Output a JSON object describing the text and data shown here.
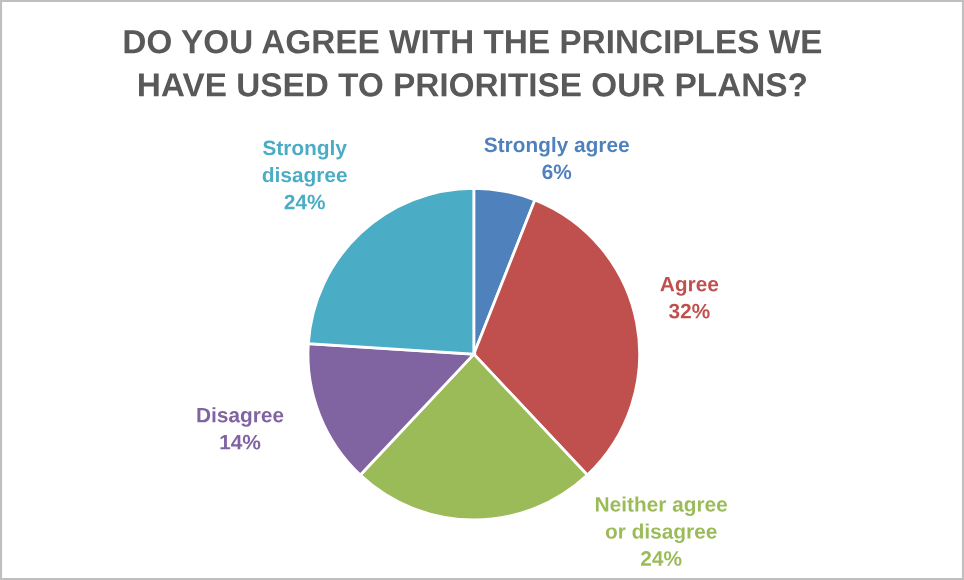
{
  "chart_data": {
    "type": "pie",
    "title": "DO YOU AGREE WITH THE PRINCIPLES WE\nHAVE USED TO PRIORITISE OUR PLANS?",
    "categories": [
      "Strongly agree",
      "Agree",
      "Neither agree\nor disagree",
      "Disagree",
      "Strongly\ndisagree"
    ],
    "values": [
      6,
      32,
      24,
      14,
      24
    ],
    "value_labels": [
      "6%",
      "32%",
      "24%",
      "14%",
      "24%"
    ],
    "colors": [
      "#4f81bd",
      "#c0504d",
      "#9bbb59",
      "#8064a2",
      "#4bacc6"
    ]
  }
}
